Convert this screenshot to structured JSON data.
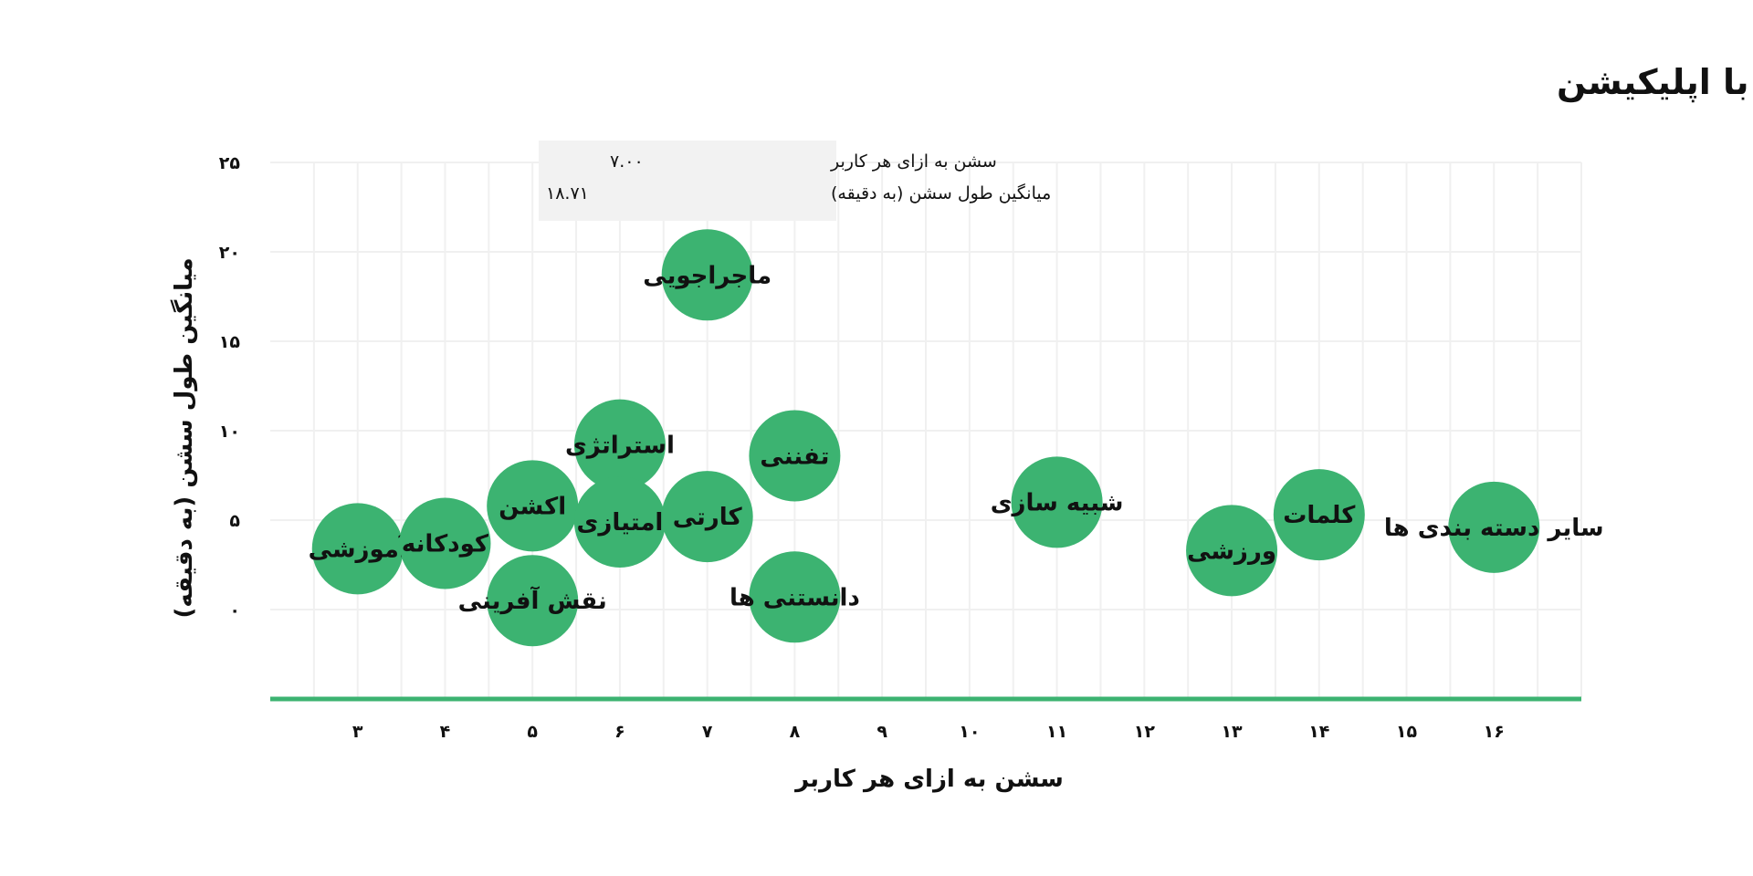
{
  "chart_data": {
    "type": "scatter",
    "title": "میزان تعامل کاربران با اپلیکیشن",
    "xlabel": "سشن به ازای هر کاربر",
    "ylabel": "میانگین طول سشن (به دقیقه)",
    "xlim": [
      2,
      17
    ],
    "ylim": [
      -5,
      25
    ],
    "x_ticks": [
      {
        "value": 3,
        "label": "۳"
      },
      {
        "value": 4,
        "label": "۴"
      },
      {
        "value": 5,
        "label": "۵"
      },
      {
        "value": 6,
        "label": "۶"
      },
      {
        "value": 7,
        "label": "۷"
      },
      {
        "value": 8,
        "label": "۸"
      },
      {
        "value": 9,
        "label": "۹"
      },
      {
        "value": 10,
        "label": "۱۰"
      },
      {
        "value": 11,
        "label": "۱۱"
      },
      {
        "value": 12,
        "label": "۱۲"
      },
      {
        "value": 13,
        "label": "۱۳"
      },
      {
        "value": 14,
        "label": "۱۴"
      },
      {
        "value": 15,
        "label": "۱۵"
      },
      {
        "value": 16,
        "label": "۱۶"
      }
    ],
    "y_ticks": [
      {
        "value": 0,
        "label": "۰"
      },
      {
        "value": 5,
        "label": "۵"
      },
      {
        "value": 10,
        "label": "۱۰"
      },
      {
        "value": 15,
        "label": "۱۵"
      },
      {
        "value": 20,
        "label": "۲۰"
      },
      {
        "value": 25,
        "label": "۲۵"
      }
    ],
    "grid": true,
    "bubble_color": "#3cb371",
    "axis_color": "#3cb371",
    "points": [
      {
        "label": "آموزشی",
        "x": 3.0,
        "y": 3.4
      },
      {
        "label": "کودکانه",
        "x": 4.0,
        "y": 3.7
      },
      {
        "label": "اکشن",
        "x": 5.0,
        "y": 5.8
      },
      {
        "label": "نقش آفرینی",
        "x": 5.0,
        "y": 0.5
      },
      {
        "label": "استراتژی",
        "x": 6.0,
        "y": 9.2
      },
      {
        "label": "امتیازی",
        "x": 6.0,
        "y": 4.9
      },
      {
        "label": "ماجراجویی",
        "x": 7.0,
        "y": 18.71
      },
      {
        "label": "کارتی",
        "x": 7.0,
        "y": 5.2
      },
      {
        "label": "تفننی",
        "x": 8.0,
        "y": 8.6
      },
      {
        "label": "دانستنی ها",
        "x": 8.0,
        "y": 0.7
      },
      {
        "label": "شبیه سازی",
        "x": 11.0,
        "y": 6.0
      },
      {
        "label": "ورزشی",
        "x": 13.0,
        "y": 3.3
      },
      {
        "label": "کلمات",
        "x": 14.0,
        "y": 5.3
      },
      {
        "label": "سایر دسته بندی ها",
        "x": 16.0,
        "y": 4.6
      }
    ],
    "tooltip": {
      "x_label": "سشن به ازای هر کاربر",
      "x_value": "۷.۰۰",
      "y_label": "میانگین طول سشن (به دقیقه)",
      "y_value": "۱۸.۷۱"
    }
  }
}
